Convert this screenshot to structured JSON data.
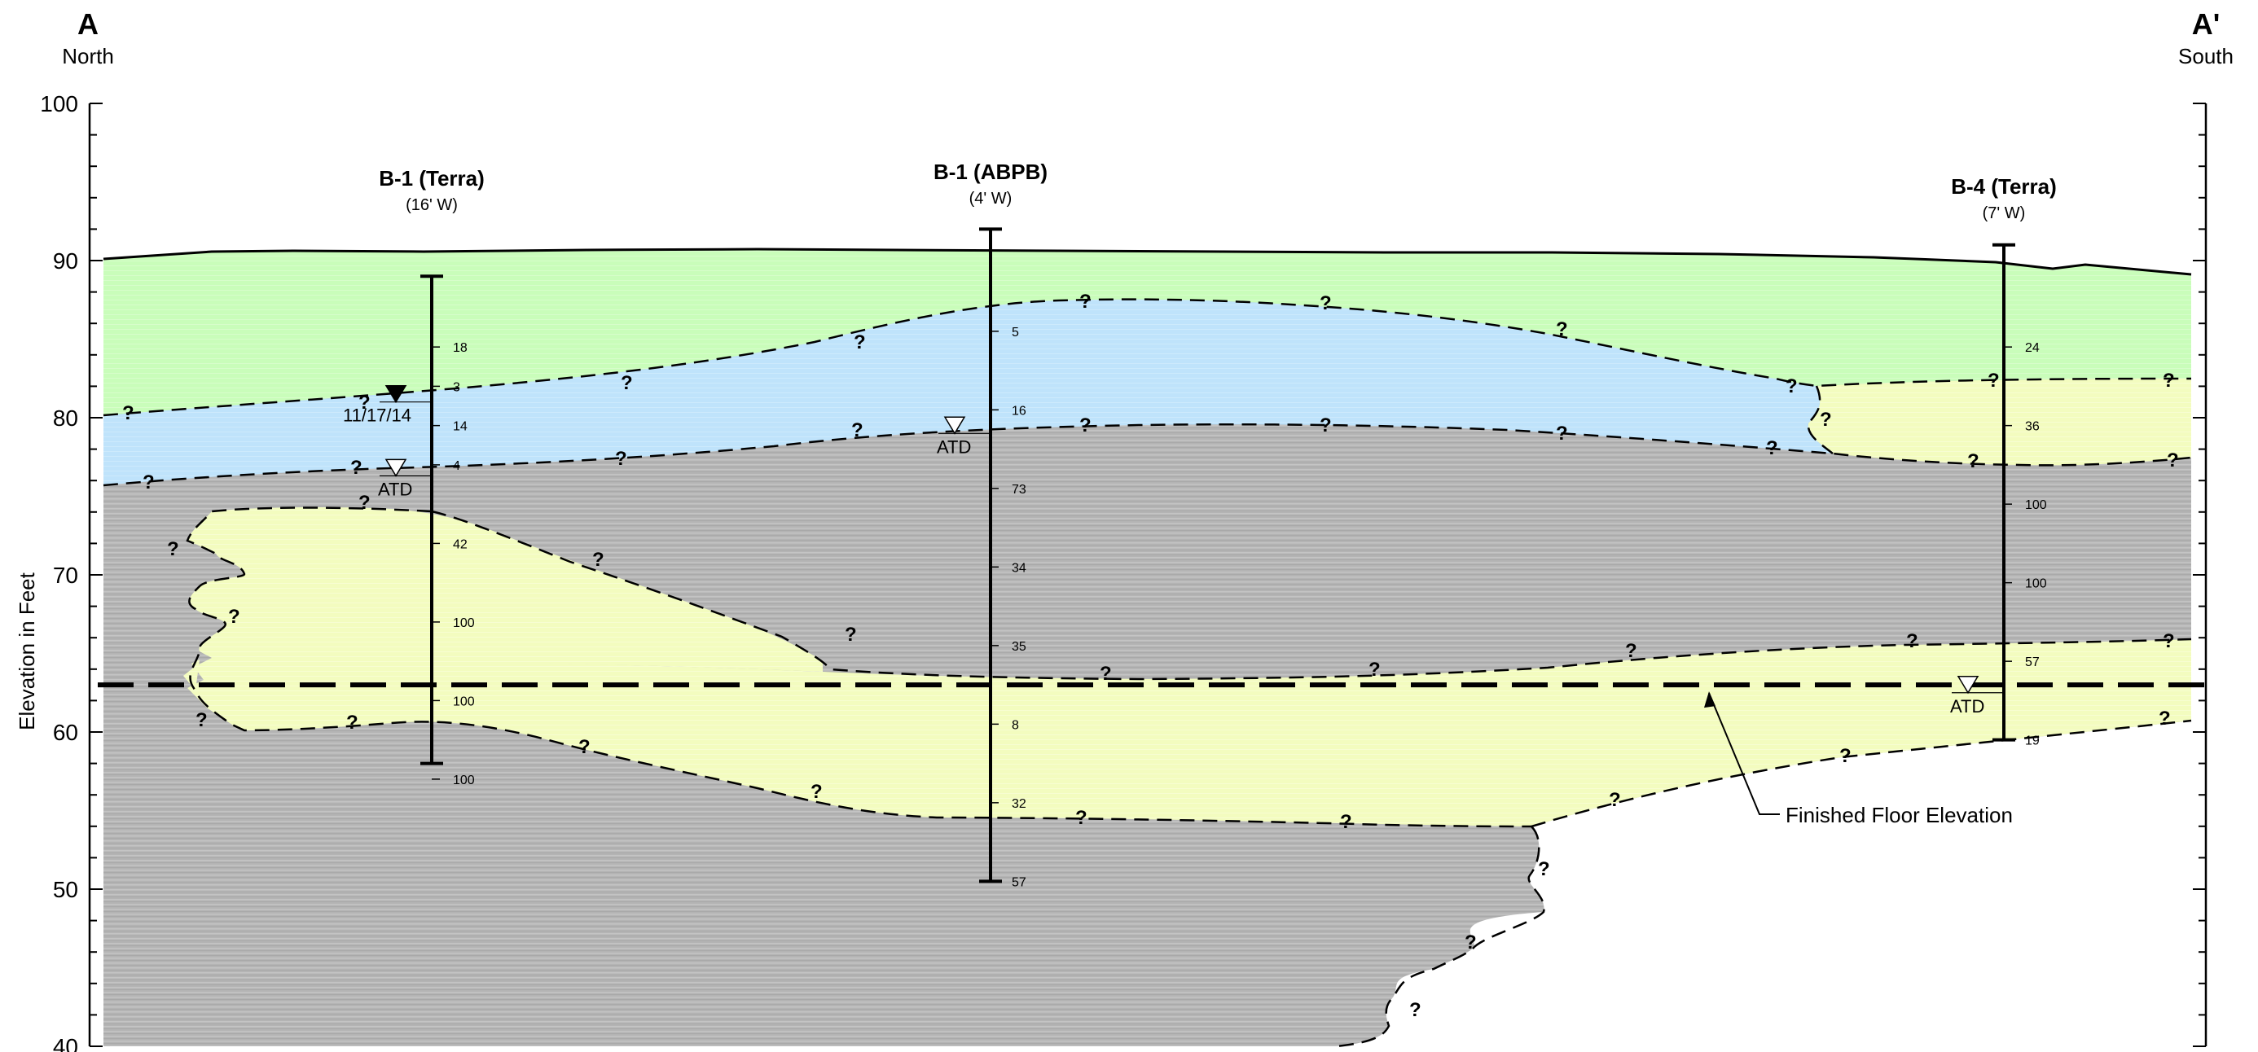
{
  "section": {
    "left": {
      "letter": "A",
      "direction": "North"
    },
    "right": {
      "letter": "A'",
      "direction": "South"
    }
  },
  "axis": {
    "ylabel": "Elevation in Feet",
    "ylim": [
      40,
      100
    ],
    "ticks": [
      "100",
      "90",
      "80",
      "70",
      "60",
      "50",
      "40"
    ]
  },
  "colors": {
    "topsoil": "#c9fdba",
    "blue_layer": "#bfe3fb",
    "gray_layer": "#b4b4b4",
    "yellow_layer": "#f3fcbf"
  },
  "borings": [
    {
      "name": "B-1 (Terra)",
      "offset": "(16' W)",
      "top_elev": 89,
      "bottom_elev": 58,
      "blows": [
        {
          "elev": 84.5,
          "value": "18"
        },
        {
          "elev": 82,
          "value": "3"
        },
        {
          "elev": 79.5,
          "value": "14"
        },
        {
          "elev": 77,
          "value": "4"
        },
        {
          "elev": 72,
          "value": "42"
        },
        {
          "elev": 67,
          "value": "100"
        },
        {
          "elev": 62,
          "value": "100"
        },
        {
          "elev": 57,
          "value": "100"
        }
      ],
      "water_levels": [
        {
          "elev": 81,
          "label": "11/17/14",
          "filled": true
        },
        {
          "elev": 76.3,
          "label": "ATD",
          "filled": false
        }
      ]
    },
    {
      "name": "B-1 (ABPB)",
      "offset": "(4' W)",
      "top_elev": 92,
      "bottom_elev": 50.5,
      "blows": [
        {
          "elev": 85.5,
          "value": "5"
        },
        {
          "elev": 80.5,
          "value": "16"
        },
        {
          "elev": 75.5,
          "value": "73"
        },
        {
          "elev": 70.5,
          "value": "34"
        },
        {
          "elev": 65.5,
          "value": "35"
        },
        {
          "elev": 60.5,
          "value": "8"
        },
        {
          "elev": 55.5,
          "value": "32"
        },
        {
          "elev": 50.5,
          "value": "57"
        }
      ],
      "water_levels": [
        {
          "elev": 79,
          "label": "ATD",
          "filled": false
        }
      ]
    },
    {
      "name": "B-4 (Terra)",
      "offset": "(7' W)",
      "top_elev": 91,
      "bottom_elev": 59.5,
      "blows": [
        {
          "elev": 84.5,
          "value": "24"
        },
        {
          "elev": 79.5,
          "value": "36"
        },
        {
          "elev": 74.5,
          "value": "100"
        },
        {
          "elev": 69.5,
          "value": "100"
        },
        {
          "elev": 64.5,
          "value": "57"
        },
        {
          "elev": 59.5,
          "value": "19"
        }
      ],
      "water_levels": [
        {
          "elev": 62.5,
          "label": "ATD",
          "filled": false
        }
      ]
    }
  ],
  "finished_floor": {
    "elev": 63,
    "label": "Finished Floor Elevation"
  },
  "uncertain_mark": "?"
}
